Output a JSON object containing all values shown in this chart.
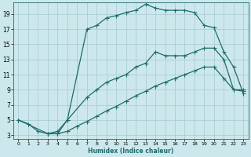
{
  "xlabel": "Humidex (Indice chaleur)",
  "bg_color": "#cde8ec",
  "grid_color": "#aacdd4",
  "line_color": "#1e6b6b",
  "xlim": [
    -0.5,
    23.5
  ],
  "ylim": [
    2.5,
    20.5
  ],
  "xticks": [
    0,
    1,
    2,
    3,
    4,
    5,
    6,
    7,
    8,
    9,
    10,
    11,
    12,
    13,
    14,
    15,
    16,
    17,
    18,
    19,
    20,
    21,
    22,
    23
  ],
  "yticks": [
    3,
    5,
    7,
    9,
    11,
    13,
    15,
    17,
    19
  ],
  "curve1_x": [
    0,
    1,
    2,
    3,
    4,
    5,
    7,
    8,
    9,
    10,
    11,
    12,
    13,
    14,
    15,
    16,
    17,
    18,
    19,
    20,
    21,
    22,
    23
  ],
  "curve1_y": [
    5,
    4.5,
    3.5,
    3.2,
    3.2,
    5,
    17,
    17.5,
    18.5,
    18.8,
    19.2,
    19.5,
    20.3,
    19.8,
    19.5,
    19.5,
    19.5,
    19.2,
    17.5,
    17.2,
    14,
    12,
    8.5
  ],
  "curve2_x": [
    0,
    3,
    4,
    5,
    7,
    8,
    9,
    10,
    11,
    12,
    13,
    14,
    15,
    16,
    17,
    18,
    19,
    20,
    21,
    22,
    23
  ],
  "curve2_y": [
    5,
    3.2,
    3.5,
    5,
    8,
    9,
    10,
    10.5,
    11,
    12,
    12.5,
    14,
    13.5,
    13.5,
    13.5,
    14,
    14.5,
    14.5,
    13,
    9,
    9
  ],
  "curve3_x": [
    3,
    4,
    5,
    6,
    7,
    8,
    9,
    10,
    11,
    12,
    13,
    14,
    15,
    16,
    17,
    18,
    19,
    20,
    21,
    22,
    23
  ],
  "curve3_y": [
    3.2,
    3.2,
    3.5,
    4.2,
    4.8,
    5.5,
    6.2,
    6.8,
    7.5,
    8.2,
    8.8,
    9.5,
    10,
    10.5,
    11,
    11.5,
    12,
    12,
    10.5,
    9,
    8.8
  ]
}
